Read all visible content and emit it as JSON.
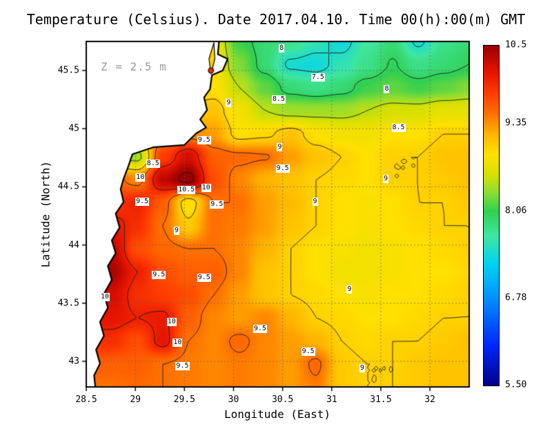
{
  "chart_data": {
    "type": "heatmap",
    "title": "Temperature (Celsius). Date 2017.04.10. Time 00(h):00(m) GMT",
    "annotation": "Z = 2.5 m",
    "xlabel": "Longitude (East)",
    "ylabel": "Latitude (North)",
    "unit": "Celsius",
    "lon_range": [
      28.5,
      32.4
    ],
    "lat_range": [
      42.78,
      45.75
    ],
    "x_ticks": [
      {
        "v": 28.5,
        "label": "28.5"
      },
      {
        "v": 29,
        "label": "29"
      },
      {
        "v": 29.5,
        "label": "29.5"
      },
      {
        "v": 30,
        "label": "30"
      },
      {
        "v": 30.5,
        "label": "30.5"
      },
      {
        "v": 31,
        "label": "31"
      },
      {
        "v": 31.5,
        "label": "31.5"
      },
      {
        "v": 32,
        "label": "32"
      }
    ],
    "y_ticks": [
      {
        "v": 43,
        "label": "43"
      },
      {
        "v": 43.5,
        "label": "43.5"
      },
      {
        "v": 44,
        "label": "44"
      },
      {
        "v": 44.5,
        "label": "44.5"
      },
      {
        "v": 45,
        "label": "45"
      },
      {
        "v": 45.5,
        "label": "45.5"
      }
    ],
    "lons": [
      28.5,
      28.76,
      29.02,
      29.28,
      29.54,
      29.8,
      30.06,
      30.32,
      30.58,
      30.84,
      31.1,
      31.36,
      31.62,
      31.88,
      32.14,
      32.4
    ],
    "lats": [
      45.75,
      45.55,
      45.35,
      45.16,
      44.96,
      44.76,
      44.56,
      44.36,
      44.17,
      43.97,
      43.77,
      43.57,
      43.37,
      43.18,
      42.98,
      42.78
    ],
    "values": [
      [
        8.6,
        8.6,
        8.6,
        8.6,
        8.7,
        8.8,
        8.1,
        7.9,
        7.8,
        7.6,
        7.4,
        7.7,
        7.9,
        7.45,
        7.8,
        7.9
      ],
      [
        8.6,
        8.6,
        8.6,
        8.7,
        8.8,
        8.8,
        8.3,
        7.9,
        7.45,
        7.4,
        7.6,
        7.8,
        8.02,
        7.8,
        7.9,
        8.0
      ],
      [
        8.7,
        8.7,
        8.7,
        8.8,
        8.9,
        8.9,
        8.5,
        8.2,
        7.9,
        7.8,
        7.9,
        8.1,
        8.2,
        8.1,
        8.2,
        8.3
      ],
      [
        8.9,
        8.9,
        8.9,
        9.0,
        9.0,
        9.1,
        8.8,
        8.5,
        8.4,
        8.4,
        8.4,
        8.5,
        8.6,
        8.6,
        8.7,
        8.7
      ],
      [
        9.2,
        9.2,
        9.2,
        9.3,
        9.4,
        9.3,
        8.9,
        8.95,
        9.1,
        8.9,
        8.8,
        8.8,
        8.9,
        8.9,
        9.0,
        9.0
      ],
      [
        8.6,
        8.5,
        8.4,
        9.8,
        10.2,
        9.6,
        9.55,
        9.52,
        9.3,
        9.1,
        9.0,
        8.9,
        9.0,
        9.0,
        9.1,
        9.1
      ],
      [
        9.6,
        9.6,
        9.4,
        10.3,
        10.6,
        9.7,
        9.4,
        9.2,
        9.1,
        9.0,
        8.95,
        8.9,
        9.0,
        9.0,
        9.05,
        9.1
      ],
      [
        9.8,
        9.8,
        10.0,
        9.6,
        8.85,
        9.5,
        9.5,
        9.3,
        9.15,
        9.0,
        8.9,
        8.85,
        8.9,
        9.0,
        9.0,
        9.05
      ],
      [
        10.1,
        10.1,
        9.9,
        9.5,
        9.05,
        9.5,
        9.45,
        9.3,
        9.1,
        9.0,
        8.9,
        8.85,
        8.9,
        8.95,
        9.0,
        9.0
      ],
      [
        10.3,
        10.3,
        9.7,
        9.55,
        9.5,
        9.5,
        9.4,
        9.2,
        9.0,
        8.9,
        8.85,
        8.8,
        8.85,
        8.9,
        8.95,
        9.0
      ],
      [
        10.4,
        10.4,
        10.0,
        9.7,
        9.6,
        9.6,
        9.4,
        9.1,
        9.0,
        8.9,
        8.8,
        8.8,
        8.85,
        8.9,
        8.9,
        8.95
      ],
      [
        10.2,
        10.2,
        9.9,
        9.8,
        9.7,
        9.5,
        9.3,
        9.1,
        9.0,
        8.95,
        8.9,
        8.85,
        8.9,
        8.9,
        8.95,
        9.0
      ],
      [
        10.1,
        10.1,
        10.0,
        10.05,
        9.6,
        9.4,
        9.3,
        9.4,
        9.2,
        9.0,
        8.95,
        8.9,
        8.9,
        8.95,
        9.0,
        9.0
      ],
      [
        9.9,
        9.9,
        9.7,
        10.1,
        9.5,
        9.4,
        9.55,
        9.4,
        9.3,
        9.2,
        9.0,
        8.95,
        9.0,
        9.0,
        9.05,
        9.1
      ],
      [
        9.6,
        9.6,
        9.6,
        9.5,
        9.45,
        9.4,
        9.45,
        9.4,
        9.3,
        9.55,
        9.05,
        9.0,
        9.0,
        9.05,
        9.1,
        9.1
      ],
      [
        9.5,
        9.5,
        9.55,
        9.5,
        9.45,
        9.4,
        9.45,
        9.4,
        9.3,
        9.45,
        9.05,
        9.0,
        9.0,
        9.05,
        9.1,
        9.1
      ]
    ],
    "contour_levels": [
      7.5,
      8,
      8.5,
      9,
      9.5,
      10,
      10.5
    ],
    "contour_labels": [
      {
        "lon": 30.49,
        "lat": 45.69,
        "text": "8"
      },
      {
        "lon": 30.86,
        "lat": 45.44,
        "text": "7.5"
      },
      {
        "lon": 31.56,
        "lat": 45.34,
        "text": "8"
      },
      {
        "lon": 30.46,
        "lat": 45.25,
        "text": "8.5"
      },
      {
        "lon": 29.95,
        "lat": 45.22,
        "text": "9"
      },
      {
        "lon": 31.68,
        "lat": 45.01,
        "text": "8.5"
      },
      {
        "lon": 29.7,
        "lat": 44.9,
        "text": "9.5"
      },
      {
        "lon": 30.47,
        "lat": 44.84,
        "text": "9"
      },
      {
        "lon": 30.5,
        "lat": 44.66,
        "text": "9.5"
      },
      {
        "lon": 29.18,
        "lat": 44.7,
        "text": "8.5"
      },
      {
        "lon": 29.05,
        "lat": 44.58,
        "text": "10"
      },
      {
        "lon": 29.52,
        "lat": 44.47,
        "text": "10.5"
      },
      {
        "lon": 29.72,
        "lat": 44.49,
        "text": "10"
      },
      {
        "lon": 29.07,
        "lat": 44.37,
        "text": "9.5"
      },
      {
        "lon": 29.83,
        "lat": 44.35,
        "text": "9.5"
      },
      {
        "lon": 30.83,
        "lat": 44.37,
        "text": "9"
      },
      {
        "lon": 29.42,
        "lat": 44.12,
        "text": "9"
      },
      {
        "lon": 31.55,
        "lat": 44.57,
        "text": "9"
      },
      {
        "lon": 29.24,
        "lat": 43.74,
        "text": "9.5"
      },
      {
        "lon": 29.7,
        "lat": 43.72,
        "text": "9.5"
      },
      {
        "lon": 28.69,
        "lat": 43.55,
        "text": "10"
      },
      {
        "lon": 31.18,
        "lat": 43.62,
        "text": "9"
      },
      {
        "lon": 29.37,
        "lat": 43.34,
        "text": "10"
      },
      {
        "lon": 29.43,
        "lat": 43.16,
        "text": "10"
      },
      {
        "lon": 30.27,
        "lat": 43.28,
        "text": "9.5"
      },
      {
        "lon": 30.76,
        "lat": 43.08,
        "text": "9.5"
      },
      {
        "lon": 29.48,
        "lat": 42.96,
        "text": "9.5"
      },
      {
        "lon": 31.31,
        "lat": 42.94,
        "text": "9"
      }
    ],
    "colorbar": {
      "min": 5.5,
      "max": 10.5,
      "ticks": [
        {
          "v": 10.5,
          "label": "10.5"
        },
        {
          "v": 9.35,
          "label": "9.35"
        },
        {
          "v": 8.06,
          "label": "8.06"
        },
        {
          "v": 6.78,
          "label": "6.78"
        },
        {
          "v": 5.5,
          "label": "5.50"
        }
      ]
    },
    "colormap_stops": [
      {
        "v": 5.5,
        "c": "#000089"
      },
      {
        "v": 6.1,
        "c": "#0028ff"
      },
      {
        "v": 6.78,
        "c": "#0090ff"
      },
      {
        "v": 7.3,
        "c": "#00d4f0"
      },
      {
        "v": 7.7,
        "c": "#40e6a0"
      },
      {
        "v": 8.06,
        "c": "#30d050"
      },
      {
        "v": 8.35,
        "c": "#90dd30"
      },
      {
        "v": 8.6,
        "c": "#d8e000"
      },
      {
        "v": 8.9,
        "c": "#ffe000"
      },
      {
        "v": 9.2,
        "c": "#ffb400"
      },
      {
        "v": 9.5,
        "c": "#ff7000"
      },
      {
        "v": 9.8,
        "c": "#ff3c00"
      },
      {
        "v": 10.1,
        "c": "#e61400"
      },
      {
        "v": 10.5,
        "c": "#990000"
      }
    ],
    "land_polygon": [
      [
        28.44,
        45.82
      ],
      [
        29.86,
        45.82
      ],
      [
        29.84,
        45.64
      ],
      [
        29.94,
        45.6
      ],
      [
        29.89,
        45.5
      ],
      [
        29.78,
        45.46
      ],
      [
        29.76,
        45.34
      ],
      [
        29.7,
        45.27
      ],
      [
        29.73,
        45.16
      ],
      [
        29.66,
        45.08
      ],
      [
        29.72,
        45.01
      ],
      [
        29.62,
        44.96
      ],
      [
        29.5,
        44.86
      ],
      [
        29.18,
        44.84
      ],
      [
        28.97,
        44.78
      ],
      [
        28.93,
        44.68
      ],
      [
        28.88,
        44.57
      ],
      [
        28.85,
        44.48
      ],
      [
        28.88,
        44.37
      ],
      [
        28.8,
        44.27
      ],
      [
        28.84,
        44.15
      ],
      [
        28.76,
        44.04
      ],
      [
        28.8,
        43.93
      ],
      [
        28.72,
        43.82
      ],
      [
        28.76,
        43.7
      ],
      [
        28.68,
        43.58
      ],
      [
        28.72,
        43.46
      ],
      [
        28.64,
        43.34
      ],
      [
        28.68,
        43.22
      ],
      [
        28.6,
        43.1
      ],
      [
        28.64,
        42.98
      ],
      [
        28.58,
        42.88
      ],
      [
        28.6,
        42.72
      ],
      [
        28.44,
        42.72
      ]
    ],
    "inlet": {
      "polygon": [
        [
          29.8,
          45.74
        ],
        [
          29.75,
          45.6
        ],
        [
          29.77,
          45.47
        ],
        [
          29.81,
          45.6
        ]
      ],
      "fill": "#ffd000"
    },
    "estuary_spot": {
      "lon": 29.77,
      "lat": 45.5,
      "r": 4,
      "color": "#e63000"
    }
  }
}
